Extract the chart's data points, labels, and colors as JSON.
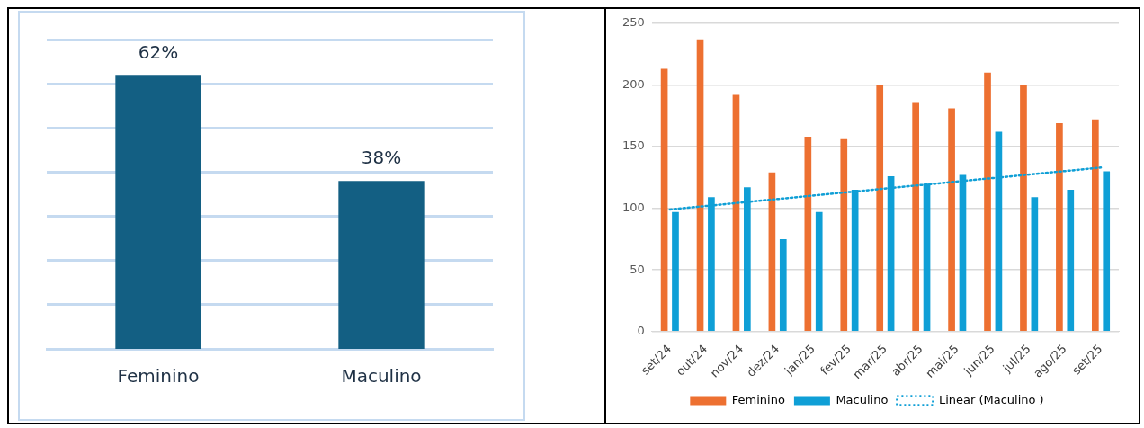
{
  "chart_data": [
    {
      "type": "bar",
      "categories": [
        "Feminino",
        "Maculino"
      ],
      "values": [
        62,
        38
      ],
      "value_labels": [
        "62%",
        "38%"
      ],
      "color": "#135f83",
      "ylim": [
        0,
        70
      ],
      "yticks": [
        {
          "value": 10,
          "label": null
        },
        {
          "value": 20,
          "label": null
        },
        {
          "value": 30,
          "label": null
        },
        {
          "value": 40,
          "label": null
        },
        {
          "value": 50,
          "label": null
        },
        {
          "value": 60,
          "label": null
        },
        {
          "value": 70,
          "label": null
        }
      ],
      "tick_labels": "x",
      "grid": "y"
    },
    {
      "type": "bar",
      "categories": [
        "set/24",
        "out/24",
        "nov/24",
        "dez/24",
        "jan/25",
        "fev/25",
        "mar/25",
        "abr/25",
        "mai/25",
        "jun/25",
        "jul/25",
        "ago/25",
        "set/25"
      ],
      "series": [
        {
          "name": "Feminino",
          "color": "#ed7031",
          "values": [
            213,
            237,
            192,
            129,
            158,
            156,
            200,
            186,
            181,
            210,
            200,
            169,
            172
          ]
        },
        {
          "name": "Maculino",
          "color": "#0f9fd6",
          "values": [
            97,
            109,
            117,
            75,
            97,
            115,
            126,
            120,
            127,
            162,
            109,
            115,
            130
          ]
        },
        {
          "name": "Linear (Maculino )",
          "type": "line",
          "color": "#0f9fd6",
          "line_style": "dotted",
          "x": [
            "set/24",
            "set/25"
          ],
          "values": [
            99,
            133
          ]
        }
      ],
      "ylim": [
        0,
        250
      ],
      "yticks": [
        0,
        50,
        100,
        150,
        200,
        250
      ],
      "grid": "y",
      "legend": "bottom"
    }
  ]
}
